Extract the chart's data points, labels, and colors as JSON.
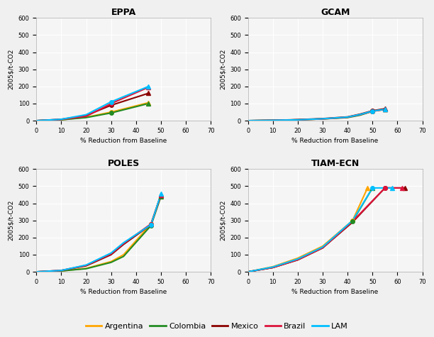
{
  "panels": {
    "EPPA": {
      "title": "EPPA",
      "series": {
        "Argentina": {
          "x": [
            0,
            10,
            20,
            30,
            45
          ],
          "y": [
            0,
            5,
            20,
            50,
            105
          ],
          "color": "#FFA500",
          "marker_last": "^",
          "lw": 1.5
        },
        "Colombia": {
          "x": [
            0,
            10,
            20,
            30,
            45
          ],
          "y": [
            0,
            5,
            18,
            45,
            100
          ],
          "color": "#228B22",
          "marker_last": "^",
          "lw": 1.5
        },
        "Mexico": {
          "x": [
            0,
            10,
            20,
            30,
            45
          ],
          "y": [
            0,
            8,
            30,
            90,
            160
          ],
          "color": "#8B0000",
          "marker_last": "o",
          "lw": 1.5
        },
        "Brazil": {
          "x": [
            0,
            10,
            20,
            30,
            45
          ],
          "y": [
            0,
            7,
            25,
            100,
            195
          ],
          "color": "#DC143C",
          "marker_last": "^",
          "lw": 1.5
        },
        "LAM": {
          "x": [
            0,
            10,
            20,
            30,
            45
          ],
          "y": [
            0,
            8,
            35,
            110,
            200
          ],
          "color": "#00BFFF",
          "marker_last": "^",
          "lw": 1.5
        }
      }
    },
    "GCAM": {
      "title": "GCAM",
      "series": {
        "Argentina": {
          "x": [
            0,
            10,
            20,
            30,
            40,
            45,
            50,
            55
          ],
          "y": [
            0,
            2,
            5,
            10,
            20,
            35,
            55,
            65
          ],
          "color": "#FFA500",
          "marker_last": "^",
          "lw": 1.5
        },
        "Colombia": {
          "x": [
            0,
            10,
            20,
            30,
            40,
            45,
            50,
            55
          ],
          "y": [
            0,
            2,
            5,
            10,
            18,
            32,
            55,
            68
          ],
          "color": "#228B22",
          "marker_last": "^",
          "lw": 1.5
        },
        "Mexico": {
          "x": [
            0,
            10,
            20,
            30,
            40,
            45,
            50,
            55
          ],
          "y": [
            0,
            2,
            6,
            12,
            22,
            38,
            58,
            70
          ],
          "color": "#8B0000",
          "marker_last": "o",
          "lw": 1.5
        },
        "Brazil": {
          "x": [
            0,
            10,
            20,
            30,
            40,
            45,
            50,
            55
          ],
          "y": [
            0,
            2,
            5,
            10,
            20,
            35,
            55,
            65
          ],
          "color": "#DC143C",
          "marker_last": "^",
          "lw": 1.5
        },
        "LAM": {
          "x": [
            0,
            10,
            20,
            30,
            40,
            45,
            50,
            55
          ],
          "y": [
            0,
            2,
            5,
            11,
            21,
            36,
            56,
            66
          ],
          "color": "#00BFFF",
          "marker_last": "^",
          "lw": 1.5
        }
      }
    },
    "POLES": {
      "title": "POLES",
      "series": {
        "Argentina": {
          "x": [
            0,
            10,
            20,
            30,
            35,
            46,
            50
          ],
          "y": [
            0,
            5,
            20,
            60,
            100,
            280,
            450
          ],
          "color": "#FFA500",
          "marker_last": "^",
          "lw": 1.5
        },
        "Colombia": {
          "x": [
            0,
            10,
            20,
            30,
            35,
            46,
            50
          ],
          "y": [
            0,
            5,
            18,
            55,
            90,
            270,
            440
          ],
          "color": "#228B22",
          "marker_last": "^",
          "lw": 1.5
        },
        "Mexico": {
          "x": [
            0,
            10,
            20,
            30,
            35,
            46,
            50
          ],
          "y": [
            0,
            8,
            35,
            100,
            160,
            275,
            450
          ],
          "color": "#8B0000",
          "marker_last": "o",
          "lw": 1.5
        },
        "Brazil": {
          "x": [
            0,
            10,
            20,
            30,
            35,
            46,
            50
          ],
          "y": [
            0,
            8,
            38,
            105,
            165,
            280,
            450
          ],
          "color": "#DC143C",
          "marker_last": "^",
          "lw": 1.5
        },
        "LAM": {
          "x": [
            0,
            10,
            20,
            30,
            35,
            46,
            50
          ],
          "y": [
            0,
            8,
            40,
            110,
            170,
            275,
            455
          ],
          "color": "#00BFFF",
          "marker_last": "^",
          "lw": 1.5
        }
      }
    },
    "TIAM-ECN": {
      "title": "TIAM-ECN",
      "series": {
        "Argentina": {
          "x": [
            0,
            10,
            20,
            30,
            42,
            48
          ],
          "y": [
            0,
            30,
            80,
            150,
            300,
            490
          ],
          "color": "#FFA500",
          "marker_last": "^",
          "lw": 1.5
        },
        "Colombia": {
          "x": [
            0,
            10,
            20,
            30,
            42,
            50
          ],
          "y": [
            0,
            25,
            70,
            140,
            295,
            490
          ],
          "color": "#228B22",
          "marker_last": "^",
          "lw": 1.5
        },
        "Mexico": {
          "x": [
            0,
            10,
            20,
            30,
            42,
            55,
            63
          ],
          "y": [
            0,
            25,
            70,
            140,
            290,
            490,
            490
          ],
          "color": "#8B0000",
          "marker_last": "o",
          "lw": 1.5
        },
        "Brazil": {
          "x": [
            0,
            10,
            20,
            30,
            42,
            55,
            62
          ],
          "y": [
            0,
            25,
            70,
            140,
            295,
            490,
            490
          ],
          "color": "#DC143C",
          "marker_last": "^",
          "lw": 1.5
        },
        "LAM": {
          "x": [
            0,
            10,
            20,
            30,
            42,
            50,
            58
          ],
          "y": [
            0,
            28,
            75,
            145,
            300,
            490,
            490
          ],
          "color": "#00BFFF",
          "marker_last": "^",
          "lw": 1.5
        }
      }
    }
  },
  "xlim": [
    0,
    70
  ],
  "ylim": [
    0,
    600
  ],
  "xlabel": "% Reduction from Baseline",
  "ylabel": "2005$/t-CO2",
  "xticks": [
    0,
    10,
    20,
    30,
    40,
    50,
    60,
    70
  ],
  "yticks": [
    0,
    100,
    200,
    300,
    400,
    500,
    600
  ],
  "legend_entries": [
    {
      "label": "Argentina",
      "color": "#FFA500"
    },
    {
      "label": "Colombia",
      "color": "#228B22"
    },
    {
      "label": "Mexico",
      "color": "#8B0000"
    },
    {
      "label": "Brazil",
      "color": "#DC143C"
    },
    {
      "label": "LAM",
      "color": "#00BFFF"
    }
  ],
  "bg_color": "#f5f5f5",
  "grid_color": "#ffffff",
  "panel_order": [
    "EPPA",
    "GCAM",
    "POLES",
    "TIAM-ECN"
  ]
}
